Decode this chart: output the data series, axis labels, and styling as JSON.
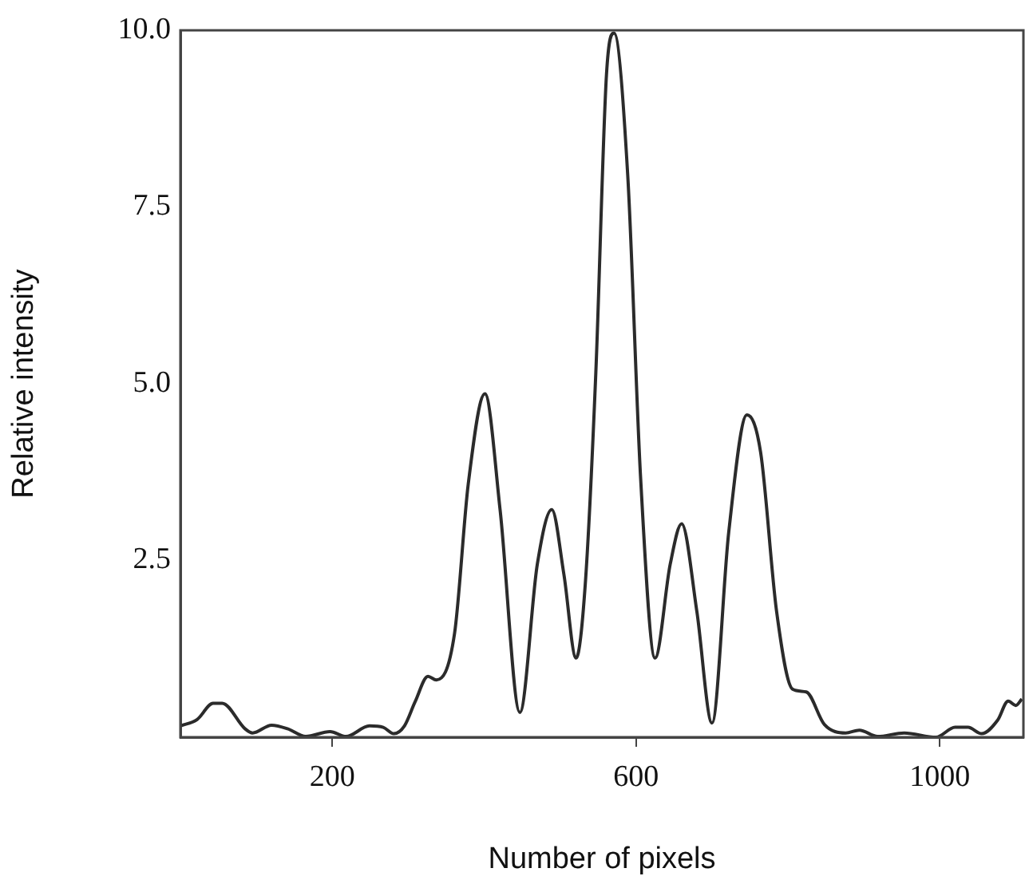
{
  "chart_data": {
    "type": "line",
    "xlabel": "Number of pixels",
    "ylabel": "Relative intensity",
    "xlim": [
      0,
      1110
    ],
    "ylim": [
      0,
      10
    ],
    "xticks": [
      200,
      600,
      1000
    ],
    "yticks": [
      2.5,
      {
        "value": 5,
        "label": "5.0"
      },
      7.5,
      {
        "value": 10,
        "label": "10.0"
      }
    ],
    "grid": false,
    "legend": false,
    "marker": "none",
    "line_style": "solid",
    "series": [
      {
        "color": "#2b2b2b",
        "x": [
          0,
          22,
          43,
          55,
          85,
          95,
          120,
          141,
          165,
          197,
          218,
          249,
          267,
          281,
          295,
          309,
          326,
          337,
          361,
          379,
          401,
          421,
          447,
          470,
          489,
          505,
          521,
          533,
          547,
          561,
          571,
          589,
          606,
          625,
          645,
          660,
          680,
          700,
          722,
          746,
          764,
          785,
          806,
          824,
          848,
          876,
          894,
          918,
          953,
          995,
          1020,
          1037,
          1055,
          1076,
          1090,
          1100,
          1108
        ],
        "values": [
          0.16,
          0.25,
          0.48,
          0.48,
          0.12,
          0.06,
          0.17,
          0.12,
          0.01,
          0.08,
          0.01,
          0.16,
          0.14,
          0.05,
          0.16,
          0.5,
          0.86,
          0.81,
          1.47,
          3.58,
          4.86,
          3.21,
          0.35,
          2.45,
          3.22,
          2.3,
          1.12,
          2.15,
          5.16,
          9.37,
          9.96,
          7.95,
          3.66,
          1.12,
          2.45,
          3.02,
          1.78,
          0.2,
          2.9,
          4.56,
          4.03,
          1.78,
          0.68,
          0.64,
          0.18,
          0.06,
          0.1,
          0.01,
          0.06,
          0,
          0.14,
          0.14,
          0.05,
          0.24,
          0.51,
          0.45,
          0.54
        ]
      }
    ]
  }
}
